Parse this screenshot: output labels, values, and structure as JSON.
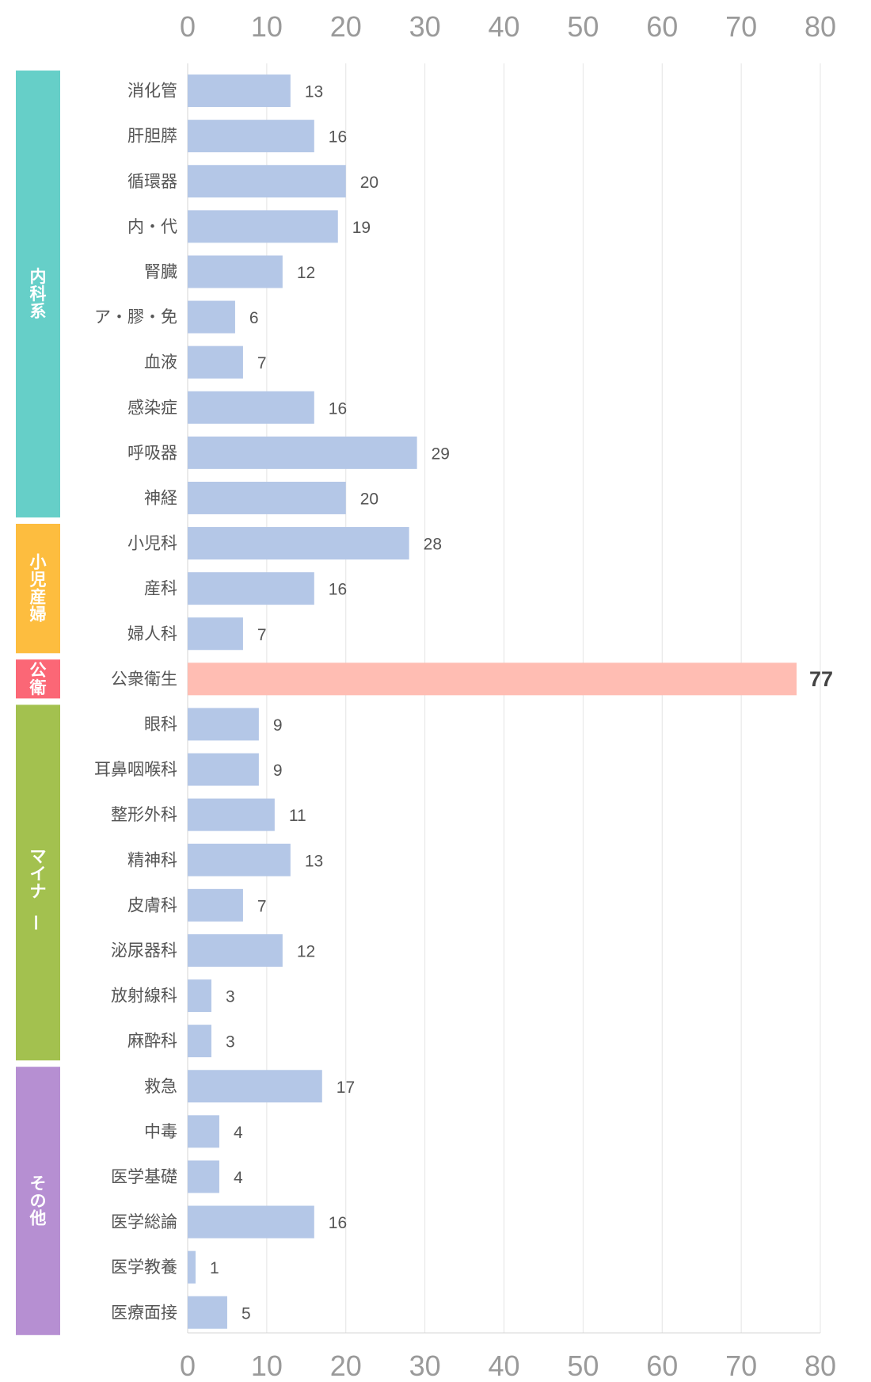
{
  "chart_data": {
    "type": "bar",
    "orientation": "horizontal",
    "xlim": [
      0,
      80
    ],
    "ticks": [
      0,
      10,
      20,
      30,
      40,
      50,
      60,
      70,
      80
    ],
    "grid": true,
    "bar_color": "#b4c7e7",
    "highlight_color": "#ffbdb3",
    "categories": [
      "消化管",
      "肝胆膵",
      "循環器",
      "内・代",
      "腎臓",
      "ア・膠・免",
      "血液",
      "感染症",
      "呼吸器",
      "神経",
      "小児科",
      "産科",
      "婦人科",
      "公衆衛生",
      "眼科",
      "耳鼻咽喉科",
      "整形外科",
      "精神科",
      "皮膚科",
      "泌尿器科",
      "放射線科",
      "麻酔科",
      "救急",
      "中毒",
      "医学基礎",
      "医学総論",
      "医学教養",
      "医療面接"
    ],
    "values": [
      13,
      16,
      20,
      19,
      12,
      6,
      7,
      16,
      29,
      20,
      28,
      16,
      7,
      77,
      9,
      9,
      11,
      13,
      7,
      12,
      3,
      3,
      17,
      4,
      4,
      16,
      1,
      5
    ],
    "highlight": [
      "公衆衛生"
    ],
    "groups": [
      {
        "label": "内科系",
        "color": "#66cfc8",
        "count": 10
      },
      {
        "label": "小児産婦",
        "color": "#fdbd3f",
        "count": 3
      },
      {
        "label": "公衛",
        "color": "#fb6776",
        "count": 1
      },
      {
        "label": "マイナー",
        "color": "#a3c14f",
        "count": 8
      },
      {
        "label": "その他",
        "color": "#b68fd2",
        "count": 6
      }
    ]
  }
}
